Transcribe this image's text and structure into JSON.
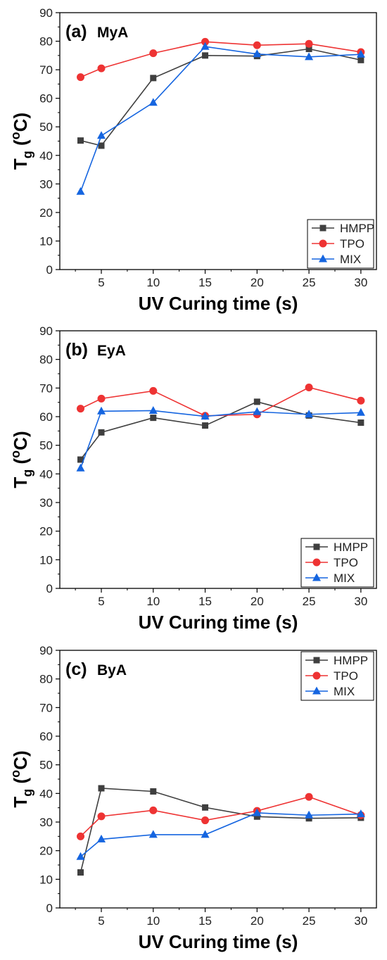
{
  "chart_data": [
    {
      "type": "line",
      "panel_label": "(a)",
      "panel_name": "MyA",
      "xlabel": "UV Curing time (s)",
      "ylabel": {
        "main": "T",
        "sub": "g",
        "unit_open": " (",
        "unit_sup": "o",
        "unit_close": "C)"
      },
      "xlim": [
        1,
        31.5
      ],
      "ylim": [
        0,
        90
      ],
      "xticks": [
        5,
        10,
        15,
        20,
        25,
        30
      ],
      "yticks": [
        0,
        10,
        20,
        30,
        40,
        50,
        60,
        70,
        80,
        90
      ],
      "x": [
        3,
        5,
        10,
        15,
        20,
        25,
        30
      ],
      "grid": false,
      "legend_position": "bottom-right",
      "series": [
        {
          "name": "HMPP",
          "color": "#3f3f3f",
          "marker": "square",
          "values": [
            45.2,
            43.4,
            67.1,
            75.0,
            74.8,
            77.3,
            73.4
          ]
        },
        {
          "name": "TPO",
          "color": "#ee3333",
          "marker": "circle",
          "values": [
            67.4,
            70.5,
            75.8,
            79.8,
            78.6,
            79.1,
            76.2
          ]
        },
        {
          "name": "MIX",
          "color": "#1565e0",
          "marker": "triangle",
          "values": [
            27.3,
            46.9,
            58.5,
            78.1,
            75.5,
            74.5,
            75.4
          ]
        }
      ]
    },
    {
      "type": "line",
      "panel_label": "(b)",
      "panel_name": "EyA",
      "xlabel": "UV Curing time (s)",
      "ylabel": {
        "main": "T",
        "sub": "g",
        "unit_open": " (",
        "unit_sup": "o",
        "unit_close": "C)"
      },
      "xlim": [
        1,
        31.5
      ],
      "ylim": [
        0,
        90
      ],
      "xticks": [
        5,
        10,
        15,
        20,
        25,
        30
      ],
      "yticks": [
        0,
        10,
        20,
        30,
        40,
        50,
        60,
        70,
        80,
        90
      ],
      "x": [
        3,
        5,
        10,
        15,
        20,
        25,
        30
      ],
      "grid": false,
      "legend_position": "bottom-right",
      "series": [
        {
          "name": "HMPP",
          "color": "#3f3f3f",
          "marker": "square",
          "values": [
            45.0,
            54.5,
            59.6,
            56.9,
            65.2,
            60.4,
            57.9
          ]
        },
        {
          "name": "TPO",
          "color": "#ee3333",
          "marker": "circle",
          "values": [
            62.8,
            66.3,
            69.0,
            60.3,
            60.8,
            70.2,
            65.6
          ]
        },
        {
          "name": "MIX",
          "color": "#1565e0",
          "marker": "triangle",
          "values": [
            42.0,
            61.9,
            62.1,
            60.1,
            61.7,
            60.8,
            61.4
          ]
        }
      ]
    },
    {
      "type": "line",
      "panel_label": "(c)",
      "panel_name": "ByA",
      "xlabel": "UV Curing time (s)",
      "ylabel": {
        "main": "T",
        "sub": "g",
        "unit_open": " (",
        "unit_sup": "o",
        "unit_close": "C)"
      },
      "xlim": [
        1,
        31.5
      ],
      "ylim": [
        0,
        90
      ],
      "xticks": [
        5,
        10,
        15,
        20,
        25,
        30
      ],
      "yticks": [
        0,
        10,
        20,
        30,
        40,
        50,
        60,
        70,
        80,
        90
      ],
      "x": [
        3,
        5,
        10,
        15,
        20,
        25,
        30
      ],
      "grid": false,
      "legend_position": "top-right",
      "series": [
        {
          "name": "HMPP",
          "color": "#3f3f3f",
          "marker": "square",
          "values": [
            12.4,
            41.8,
            40.7,
            35.1,
            31.9,
            31.3,
            31.5
          ]
        },
        {
          "name": "TPO",
          "color": "#ee3333",
          "marker": "circle",
          "values": [
            25.0,
            32.0,
            34.1,
            30.6,
            33.9,
            38.8,
            32.4
          ]
        },
        {
          "name": "MIX",
          "color": "#1565e0",
          "marker": "triangle",
          "values": [
            17.9,
            24.0,
            25.6,
            25.6,
            33.2,
            32.4,
            32.8
          ]
        }
      ]
    }
  ]
}
